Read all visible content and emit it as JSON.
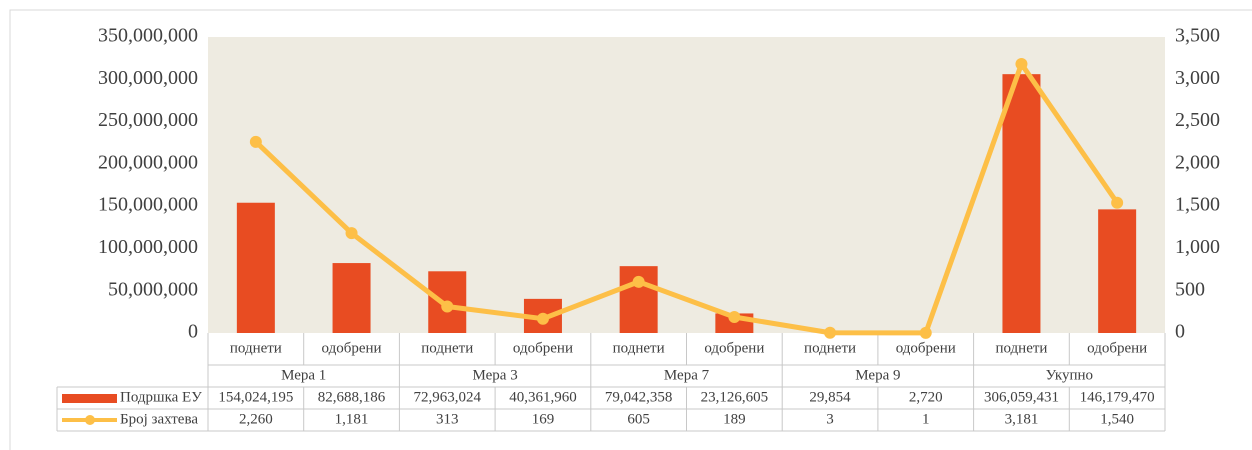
{
  "chart_data": {
    "type": "bar-line",
    "categories": [
      "поднети",
      "одобрени",
      "поднети",
      "одобрени",
      "поднети",
      "одобрени",
      "поднети",
      "одобрени",
      "поднети",
      "одобрени"
    ],
    "groups": [
      "Мера 1",
      "Мера 3",
      "Мера 7",
      "Мера 9",
      "Укупно"
    ],
    "series": [
      {
        "name": "Подршка ЕУ",
        "color": "#e84c22",
        "type": "bar",
        "values": [
          154024195,
          82688186,
          72963024,
          40361960,
          79042358,
          23126605,
          29854,
          2720,
          306059431,
          146179470
        ],
        "value_labels": [
          "154,024,195",
          "82,688,186",
          "72,963,024",
          "40,361,960",
          "79,042,358",
          "23,126,605",
          "29,854",
          "2,720",
          "306,059,431",
          "146,179,470"
        ]
      },
      {
        "name": "Број захтева",
        "color": "#fdbf47",
        "type": "line",
        "axis": "y2",
        "values": [
          2260,
          1181,
          313,
          169,
          605,
          189,
          3,
          1,
          3181,
          1540
        ],
        "value_labels": [
          "2,260",
          "1,181",
          "313",
          "169",
          "605",
          "189",
          "3",
          "1",
          "3,181",
          "1,540"
        ]
      }
    ],
    "ylim": [
      0,
      350000000
    ],
    "yticks": [
      0,
      {
        "value": 50000000,
        "label": "50,000,000"
      },
      {
        "value": 100000000,
        "label": "100,000,000"
      },
      {
        "value": 150000000,
        "label": "150,000,000"
      },
      {
        "value": 200000000,
        "label": "200,000,000"
      },
      {
        "value": 250000000,
        "label": "250,000,000"
      },
      {
        "value": 300000000,
        "label": "300,000,000"
      },
      {
        "value": 350000000,
        "label": "350,000,000"
      }
    ],
    "y2lim": [
      0,
      3500
    ],
    "y2ticks": [
      0,
      500,
      {
        "value": 1000,
        "label": "1,000"
      },
      {
        "value": 1500,
        "label": "1,500"
      },
      {
        "value": 2000,
        "label": "2,000"
      },
      {
        "value": 2500,
        "label": "2,500"
      },
      {
        "value": 3000,
        "label": "3,000"
      },
      {
        "value": 3500,
        "label": "3,500"
      }
    ],
    "grid": false
  }
}
